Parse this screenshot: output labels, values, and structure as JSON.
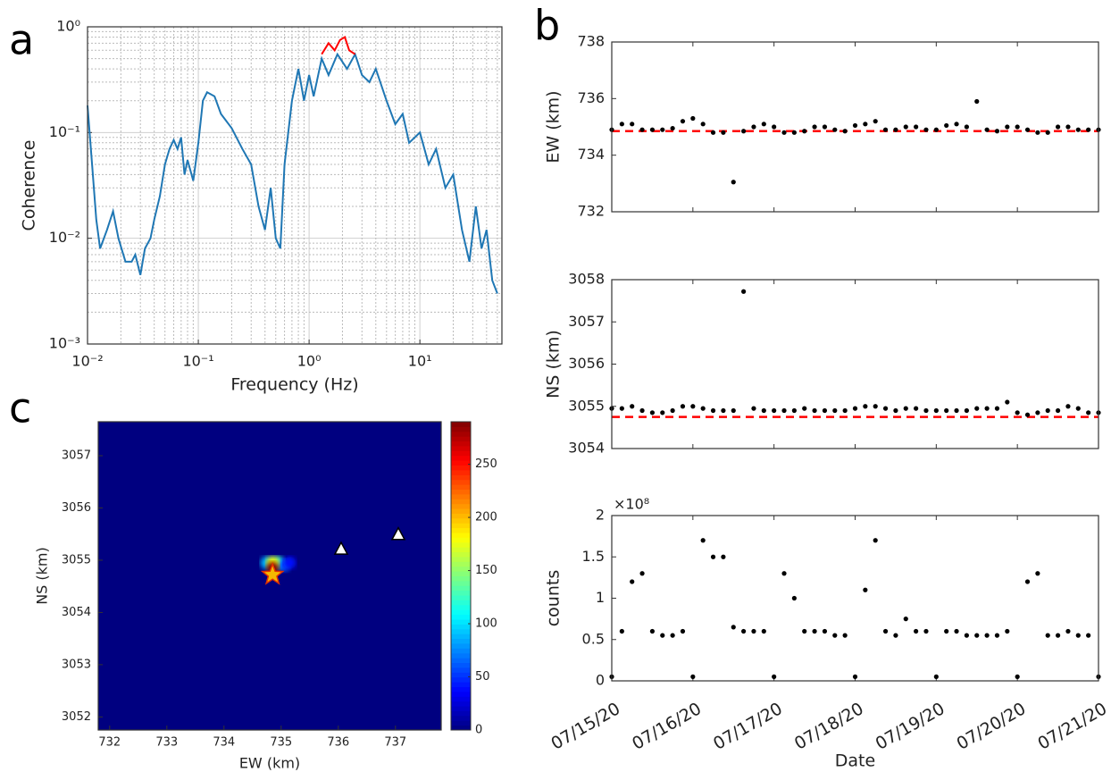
{
  "chart_data": [
    {
      "type": "line",
      "panel_label": "a",
      "xlabel": "Frequency (Hz)",
      "ylabel": "Coherence",
      "log_x": true,
      "log_y": true,
      "grid": true,
      "minor_grid": true,
      "xlim": [
        0.01,
        55
      ],
      "ylim": [
        0.001,
        1
      ],
      "xticks": [
        {
          "value": 0.01,
          "label": "10⁻²"
        },
        {
          "value": 0.1,
          "label": "10⁻¹"
        },
        {
          "value": 1,
          "label": "10⁰"
        },
        {
          "value": 10,
          "label": "10¹"
        }
      ],
      "yticks": [
        {
          "value": 0.001,
          "label": "10⁻³"
        },
        {
          "value": 0.01,
          "label": "10⁻²"
        },
        {
          "value": 0.1,
          "label": "10⁻¹"
        },
        {
          "value": 1,
          "label": "10⁰"
        }
      ],
      "series": [
        {
          "color": "#1f77b4",
          "x": [
            0.01,
            0.011,
            0.012,
            0.013,
            0.015,
            0.017,
            0.019,
            0.022,
            0.025,
            0.027,
            0.03,
            0.033,
            0.037,
            0.04,
            0.045,
            0.05,
            0.055,
            0.06,
            0.065,
            0.07,
            0.075,
            0.08,
            0.09,
            0.1,
            0.11,
            0.12,
            0.14,
            0.16,
            0.2,
            0.25,
            0.3,
            0.35,
            0.4,
            0.45,
            0.5,
            0.55,
            0.6,
            0.7,
            0.8,
            0.9,
            1.0,
            1.1,
            1.3,
            1.5,
            1.8,
            2.2,
            2.6,
            3,
            3.5,
            4,
            5,
            6,
            7,
            8,
            10,
            12,
            14,
            17,
            20,
            24,
            28,
            32,
            36,
            40,
            45,
            50
          ],
          "values": [
            0.18,
            0.05,
            0.015,
            0.008,
            0.012,
            0.018,
            0.01,
            0.006,
            0.006,
            0.007,
            0.0045,
            0.008,
            0.01,
            0.015,
            0.025,
            0.05,
            0.07,
            0.085,
            0.07,
            0.09,
            0.04,
            0.055,
            0.035,
            0.08,
            0.2,
            0.24,
            0.22,
            0.15,
            0.11,
            0.07,
            0.05,
            0.02,
            0.012,
            0.03,
            0.01,
            0.008,
            0.05,
            0.2,
            0.4,
            0.2,
            0.35,
            0.22,
            0.5,
            0.35,
            0.55,
            0.4,
            0.55,
            0.35,
            0.3,
            0.4,
            0.2,
            0.12,
            0.15,
            0.08,
            0.1,
            0.05,
            0.07,
            0.03,
            0.04,
            0.012,
            0.006,
            0.02,
            0.008,
            0.012,
            0.004,
            0.003
          ]
        },
        {
          "color": "#ff0000",
          "x": [
            1.3,
            1.5,
            1.7,
            1.9,
            2.1,
            2.3,
            2.6
          ],
          "values": [
            0.55,
            0.7,
            0.6,
            0.75,
            0.8,
            0.6,
            0.55
          ]
        }
      ]
    },
    {
      "type": "scatter",
      "panel_label": "b",
      "ylabel": "EW (km)",
      "color": "#000000",
      "xlim": [
        "07/15/20",
        "07/21/20"
      ],
      "ylim": [
        732,
        738
      ],
      "yticks": [
        732,
        734,
        736,
        738
      ],
      "reference_line": {
        "value": 734.85,
        "color": "#ff0000"
      },
      "values": [
        734.9,
        735.1,
        735.1,
        734.9,
        734.9,
        734.9,
        734.95,
        735.2,
        735.3,
        735.1,
        734.8,
        734.8,
        733.05,
        734.85,
        735.0,
        735.1,
        735.0,
        734.8,
        734.8,
        734.85,
        735.0,
        735.0,
        734.9,
        734.85,
        735.05,
        735.1,
        735.2,
        734.9,
        734.9,
        735.0,
        735.0,
        734.9,
        734.9,
        735.05,
        735.1,
        735.0,
        735.9,
        734.9,
        734.85,
        735.0,
        735.0,
        734.9,
        734.8,
        734.8,
        735.0,
        735.0,
        734.9,
        734.9,
        734.9
      ]
    },
    {
      "type": "scatter",
      "ylabel": "NS (km)",
      "color": "#000000",
      "xlim": [
        "07/15/20",
        "07/21/20"
      ],
      "ylim": [
        3054,
        3058
      ],
      "yticks": [
        3054,
        3055,
        3056,
        3057,
        3058
      ],
      "reference_line": {
        "value": 3054.75,
        "color": "#ff0000"
      },
      "values": [
        3054.95,
        3054.95,
        3055.0,
        3054.9,
        3054.85,
        3054.85,
        3054.9,
        3055.0,
        3055.0,
        3054.95,
        3054.9,
        3054.9,
        3054.9,
        3057.72,
        3054.95,
        3054.9,
        3054.9,
        3054.9,
        3054.9,
        3054.95,
        3054.9,
        3054.9,
        3054.9,
        3054.9,
        3054.95,
        3055.0,
        3055.0,
        3054.95,
        3054.9,
        3054.95,
        3054.95,
        3054.9,
        3054.9,
        3054.9,
        3054.9,
        3054.9,
        3054.95,
        3054.95,
        3054.95,
        3055.1,
        3054.85,
        3054.8,
        3054.85,
        3054.9,
        3054.9,
        3055.0,
        3054.95,
        3054.85,
        3054.85
      ]
    },
    {
      "type": "scatter",
      "ylabel": "counts",
      "xlabel": "Date",
      "y_multiplier": "×10⁸",
      "color": "#000000",
      "xlim": [
        "07/15/20",
        "07/21/20"
      ],
      "ylim": [
        0,
        200000000
      ],
      "yticks": [
        0,
        {
          "value": 50000000,
          "label": "0.5"
        },
        {
          "value": 100000000,
          "label": "1"
        },
        {
          "value": 150000000,
          "label": "1.5"
        },
        {
          "value": 200000000,
          "label": "2"
        }
      ],
      "xticks": [
        "07/15/20",
        "07/16/20",
        "07/17/20",
        "07/18/20",
        "07/19/20",
        "07/20/20",
        "07/21/20"
      ],
      "values": [
        5000000,
        60000000,
        120000000,
        130000000,
        60000000,
        55000000,
        55000000,
        60000000,
        5000000,
        170000000,
        150000000,
        150000000,
        65000000,
        60000000,
        60000000,
        60000000,
        5000000,
        130000000,
        100000000,
        60000000,
        60000000,
        60000000,
        55000000,
        55000000,
        5000000,
        110000000,
        170000000,
        60000000,
        55000000,
        75000000,
        60000000,
        60000000,
        5000000,
        60000000,
        60000000,
        55000000,
        55000000,
        55000000,
        55000000,
        60000000,
        5000000,
        120000000,
        130000000,
        55000000,
        55000000,
        60000000,
        55000000,
        55000000,
        5000000
      ]
    },
    {
      "type": "heatmap",
      "panel_label": "c",
      "xlabel": "EW (km)",
      "ylabel": "NS (km)",
      "xlim": [
        731.8,
        737.8
      ],
      "ylim": [
        3051.75,
        3057.65
      ],
      "xticks": [
        732,
        733,
        734,
        735,
        736,
        737
      ],
      "yticks": [
        3052,
        3053,
        3054,
        3055,
        3056,
        3057
      ],
      "zlim": [
        0,
        290
      ],
      "colorbar_ticks": [
        0,
        50,
        100,
        150,
        200,
        250
      ],
      "points": [
        {
          "x": 734.95,
          "y": 3054.95,
          "z": 120
        },
        {
          "x": 734.75,
          "y": 3054.95,
          "z": 90
        },
        {
          "x": 735.05,
          "y": 3054.9,
          "z": 60
        },
        {
          "x": 735.15,
          "y": 3054.95,
          "z": 40
        },
        {
          "x": 734.85,
          "y": 3054.95,
          "z": 180
        },
        {
          "x": 734.85,
          "y": 3054.85,
          "z": 290
        }
      ],
      "markers": [
        {
          "shape": "star",
          "x": 734.85,
          "y": 3054.72,
          "color": "#f5b800"
        },
        {
          "shape": "triangle",
          "x": 736.05,
          "y": 3055.22,
          "color": "#ffffff"
        },
        {
          "shape": "triangle",
          "x": 737.05,
          "y": 3055.5,
          "color": "#ffffff"
        }
      ]
    }
  ]
}
